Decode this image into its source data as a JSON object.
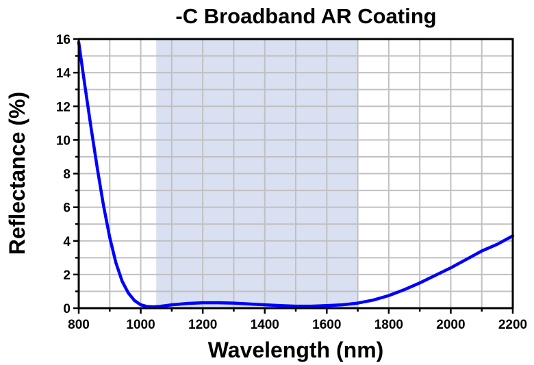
{
  "chart_data": {
    "type": "line",
    "title": "-C Broadband AR Coating",
    "xlabel": "Wavelength (nm)",
    "ylabel": "Reflectance (%)",
    "xlim": [
      800,
      2200
    ],
    "ylim": [
      0,
      16
    ],
    "xticks": [
      800,
      1000,
      1200,
      1400,
      1600,
      1800,
      2000,
      2200
    ],
    "yticks": [
      0,
      2,
      4,
      6,
      8,
      10,
      12,
      14,
      16
    ],
    "xticks_minor_step": 100,
    "yticks_minor_step": 1,
    "grid": true,
    "shaded_band": {
      "x_range": [
        1050,
        1700
      ],
      "color": "#d9e0f1"
    },
    "series": [
      {
        "name": "Reflectance",
        "color": "#0000ff",
        "x": [
          800,
          820,
          840,
          860,
          880,
          900,
          920,
          940,
          960,
          980,
          1000,
          1020,
          1040,
          1060,
          1080,
          1100,
          1150,
          1200,
          1250,
          1300,
          1350,
          1400,
          1450,
          1500,
          1550,
          1600,
          1650,
          1700,
          1750,
          1800,
          1850,
          1900,
          1950,
          2000,
          2050,
          2100,
          2150,
          2200
        ],
        "y": [
          15.8,
          13.2,
          10.7,
          8.3,
          6.1,
          4.2,
          2.7,
          1.6,
          0.9,
          0.45,
          0.2,
          0.1,
          0.08,
          0.1,
          0.15,
          0.2,
          0.28,
          0.32,
          0.32,
          0.3,
          0.25,
          0.2,
          0.15,
          0.12,
          0.12,
          0.15,
          0.2,
          0.3,
          0.48,
          0.75,
          1.1,
          1.5,
          1.95,
          2.4,
          2.9,
          3.4,
          3.8,
          4.3
        ]
      }
    ]
  }
}
